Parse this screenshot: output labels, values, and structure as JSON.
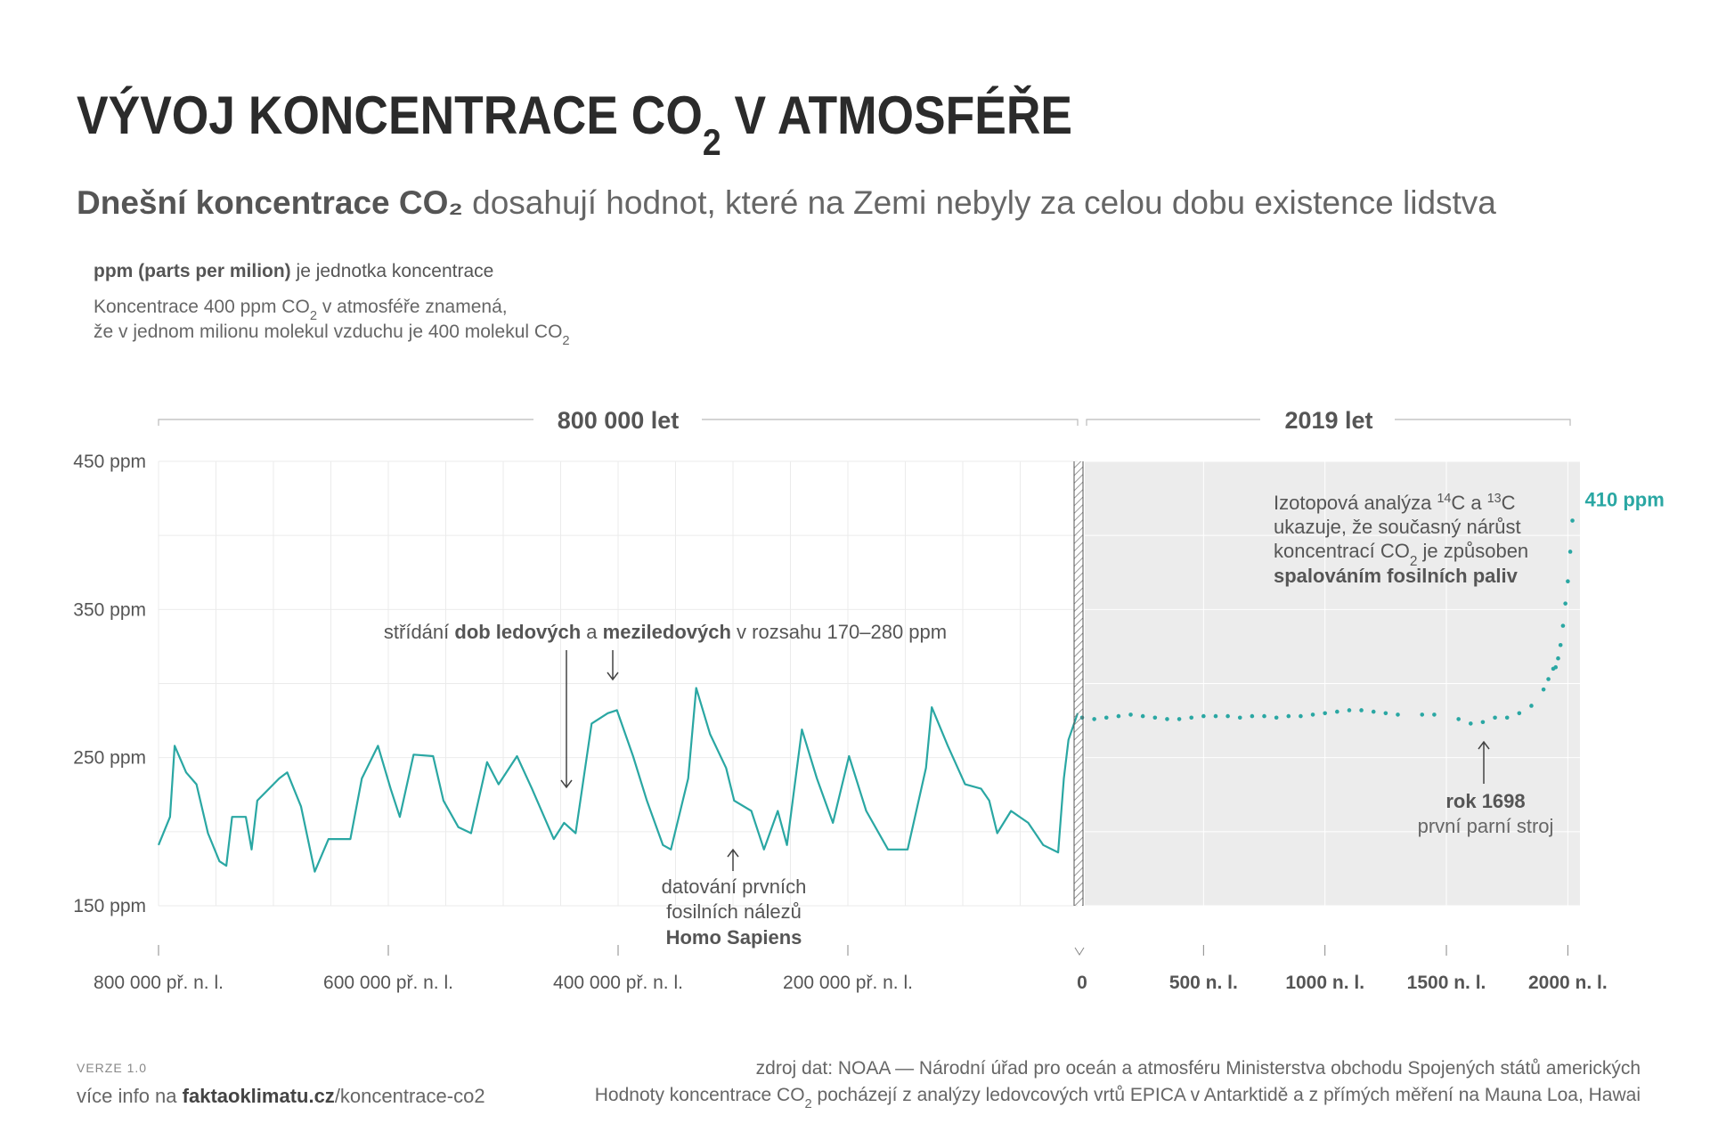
{
  "header": {
    "title": [
      "VÝVOJ KONCENTRACE CO",
      "2",
      " V ATMOSFÉŘE"
    ],
    "subtitle": [
      "Dnešní koncentrace CO₂",
      " dosahují hodnot, které na Zemi nebyly za celou dobu existence lidstva"
    ]
  },
  "notes": {
    "unit": [
      "ppm (parts per milion)",
      " je jednotka koncentrace"
    ],
    "line1": [
      "Koncentrace 400 ppm CO",
      "2",
      " v atmosféře znamená,"
    ],
    "line2": [
      "že v jednom milionu molekul vzduchu je 400 molekul CO",
      "2"
    ]
  },
  "chart_data": [
    {
      "type": "line",
      "period_label": "800 000 let",
      "color": "#2aa7a3",
      "grid": true,
      "x": [
        -800000,
        -790000,
        -786000,
        -776000,
        -767000,
        -757000,
        -747000,
        -741000,
        -736000,
        -724000,
        -719000,
        -714000,
        -695000,
        -688000,
        -676000,
        -664000,
        -652000,
        -633000,
        -623000,
        -609000,
        -598000,
        -590000,
        -578000,
        -561000,
        -552000,
        -539000,
        -528000,
        -514000,
        -504000,
        -488000,
        -475000,
        -456000,
        -447000,
        -437000,
        -423000,
        -409000,
        -401000,
        -387000,
        -375000,
        -361000,
        -354000,
        -339000,
        -332000,
        -320000,
        -306000,
        -299000,
        -284000,
        -273000,
        -261000,
        -253000,
        -240000,
        -227000,
        -213000,
        -199000,
        -184000,
        -165000,
        -148000,
        -132000,
        -127000,
        -113000,
        -98000,
        -84000,
        -77000,
        -70000,
        -58000,
        -43000,
        -30000,
        -17000,
        -12000,
        -8000,
        0
      ],
      "values": [
        191,
        210,
        258,
        240,
        232,
        199,
        180,
        177,
        210,
        210,
        188,
        221,
        236,
        240,
        217,
        173,
        195,
        195,
        236,
        258,
        229,
        210,
        252,
        251,
        221,
        203,
        199,
        247,
        232,
        251,
        229,
        195,
        206,
        199,
        273,
        280,
        282,
        251,
        221,
        191,
        188,
        236,
        297,
        266,
        243,
        221,
        214,
        188,
        214,
        191,
        269,
        236,
        206,
        251,
        214,
        188,
        188,
        243,
        284,
        258,
        232,
        229,
        221,
        199,
        214,
        206,
        191,
        186,
        236,
        262,
        280
      ],
      "xlim": [
        -800000,
        0
      ],
      "xticks": [
        {
          "value": -800000,
          "label": "800 000 př. n. l."
        },
        {
          "value": -600000,
          "label": "600 000 př. n. l."
        },
        {
          "value": -400000,
          "label": "400 000 př. n. l."
        },
        {
          "value": -200000,
          "label": "200 000 př. n. l."
        }
      ],
      "minor_xticks": [
        -750000,
        -700000,
        -650000,
        -550000,
        -500000,
        -450000,
        -350000,
        -300000,
        -250000,
        -150000,
        -100000,
        -50000
      ],
      "ylim": [
        150,
        450
      ],
      "yticks": [
        {
          "value": 150,
          "label": "150 ppm"
        },
        {
          "value": 250,
          "label": "250 ppm"
        },
        {
          "value": 350,
          "label": "350 ppm"
        },
        {
          "value": 450,
          "label": "450 ppm"
        }
      ],
      "minor_yticks": [
        200,
        300,
        400
      ],
      "annotations": {
        "cycles": [
          "střídání ",
          "dob ledových",
          " a ",
          "meziledových",
          " v rozsahu 170–280 ppm"
        ],
        "homo": [
          "datování prvních",
          "fosilních nálezů",
          "Homo Sapiens"
        ]
      }
    },
    {
      "type": "scatter",
      "period_label": "2019 let",
      "color": "#2aa7a3",
      "x": [
        0,
        50,
        100,
        150,
        200,
        250,
        300,
        350,
        400,
        450,
        500,
        550,
        600,
        650,
        700,
        750,
        800,
        850,
        900,
        950,
        1000,
        1050,
        1100,
        1150,
        1200,
        1250,
        1300,
        1400,
        1450,
        1550,
        1600,
        1650,
        1700,
        1750,
        1800,
        1850,
        1900,
        1920,
        1940,
        1950,
        1960,
        1970,
        1980,
        1990,
        2000,
        2010,
        2019
      ],
      "values": [
        277,
        276,
        277,
        278,
        279,
        278,
        277,
        276,
        276,
        277,
        278,
        278,
        278,
        277,
        278,
        278,
        277,
        278,
        278,
        279,
        280,
        281,
        282,
        282,
        281,
        280,
        279,
        279,
        279,
        276,
        273,
        274,
        277,
        277,
        280,
        285,
        296,
        303,
        310,
        311,
        317,
        326,
        339,
        354,
        369,
        389,
        410
      ],
      "value_labels": [
        null,
        null,
        null,
        null,
        null,
        null,
        null,
        null,
        null,
        null,
        null,
        null,
        null,
        null,
        null,
        null,
        null,
        null,
        null,
        null,
        null,
        null,
        null,
        null,
        null,
        null,
        null,
        null,
        null,
        null,
        null,
        null,
        null,
        null,
        null,
        null,
        null,
        null,
        null,
        null,
        null,
        null,
        null,
        null,
        null,
        null,
        "410 ppm"
      ],
      "xlim": [
        0,
        2050
      ],
      "xticks": [
        0,
        {
          "value": 500,
          "label": "500 n. l."
        },
        {
          "value": 1000,
          "label": "1000 n. l."
        },
        {
          "value": 1500,
          "label": "1500 n. l."
        },
        {
          "value": 2000,
          "label": "2000 n. l."
        }
      ],
      "ylim": [
        150,
        450
      ],
      "annotations": {
        "isotope": [
          [
            "Izotopová analýza ",
            "14",
            "C a ",
            "13",
            "C"
          ],
          "ukazuje, že současný nárůst",
          [
            "koncentrací CO",
            "2",
            " je způsoben"
          ],
          "spalováním fosilních paliv"
        ],
        "steam": [
          "rok 1698",
          "první parní stroj"
        ]
      }
    }
  ],
  "footer": {
    "version": "VERZE 1.0",
    "more_info": [
      "více info na ",
      "faktaoklimatu.cz",
      "/koncentrace-co2"
    ],
    "source": "zdroj dat: NOAA — Národní úřad pro oceán a atmosféru Ministerstva obchodu Spojených států amerických",
    "method": [
      "Hodnoty koncentrace CO",
      "2",
      " pocházejí z analýzy ledovcových vrtů EPICA v Antarktidě a z přímých měření na Mauna Loa, Hawai"
    ]
  }
}
